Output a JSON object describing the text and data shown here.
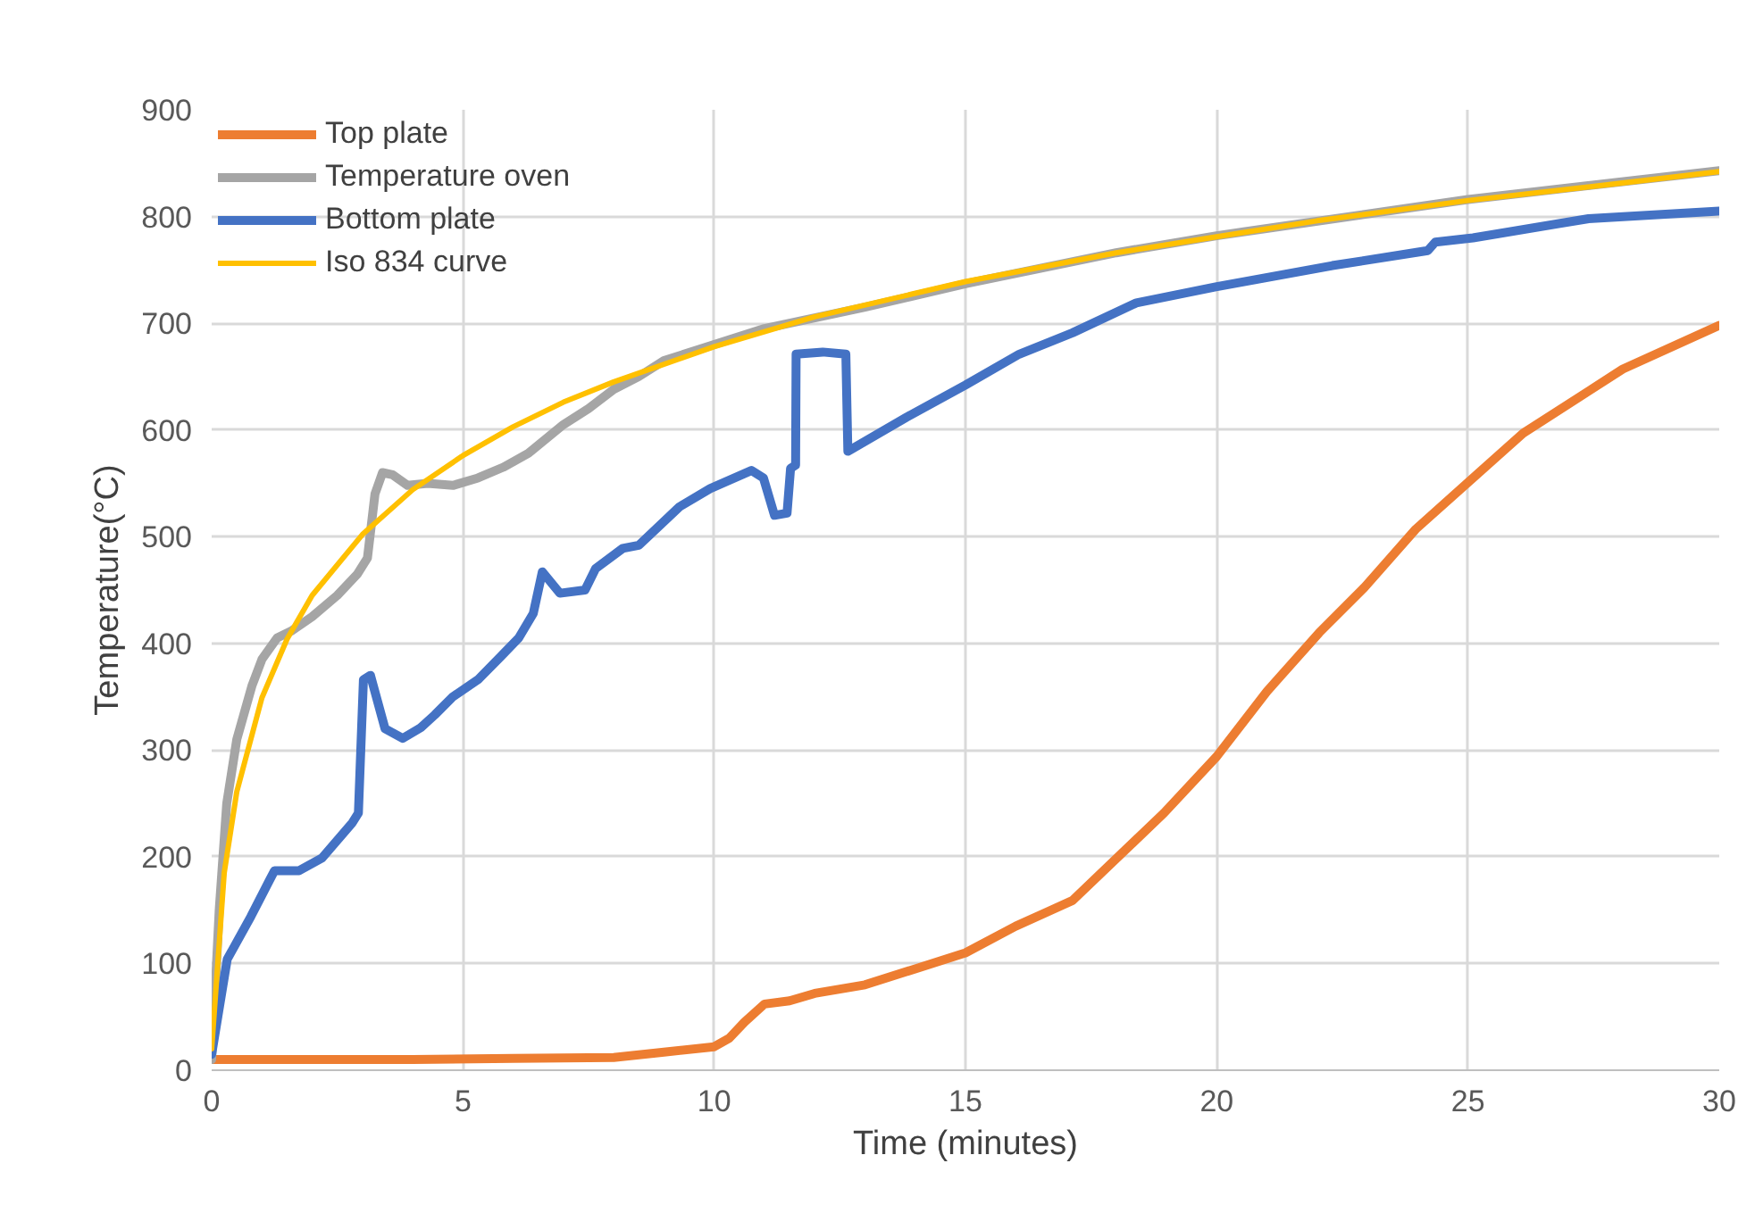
{
  "chart_data": {
    "type": "line",
    "xlabel": "Time (minutes)",
    "ylabel": "Temperature(°C)",
    "xlim": [
      0,
      30
    ],
    "xticks": [
      0,
      5,
      10,
      15,
      20,
      25,
      30
    ],
    "ylim": [
      0,
      900
    ],
    "yticks": [
      0,
      100,
      200,
      300,
      400,
      500,
      600,
      700,
      800,
      900
    ],
    "grid": true,
    "legend": "top left",
    "marker": "none",
    "line_style": "solid",
    "series": [
      {
        "name": "Top plate",
        "color": "#ed7d31",
        "x": [
          0,
          2,
          4,
          6,
          8,
          9,
          10,
          10.3,
          10.6,
          11,
          11.5,
          12,
          13,
          14,
          15,
          16,
          17.13,
          18.95,
          20.0,
          21.0,
          22.04,
          22.93,
          23.96,
          25.1,
          26.1,
          28.08,
          30
        ],
        "values": [
          10,
          10,
          10,
          11,
          12,
          17,
          22,
          30,
          45,
          62,
          65,
          72,
          80,
          95,
          110,
          135,
          159,
          241,
          294,
          355,
          410,
          452,
          507,
          555,
          597,
          657,
          698
        ]
      },
      {
        "name": "Temperature oven",
        "color": "#a5a5a5",
        "x": [
          0,
          0.15,
          0.3,
          0.5,
          0.8,
          1.0,
          1.3,
          1.6,
          2,
          2.5,
          2.9,
          3.1,
          3.25,
          3.4,
          3.6,
          3.9,
          4.3,
          4.8,
          5.3,
          5.8,
          6.3,
          7,
          7.5,
          8,
          8.5,
          9,
          10,
          11,
          12,
          13,
          15,
          18,
          20,
          25,
          30
        ],
        "values": [
          10,
          150,
          250,
          310,
          360,
          385,
          405,
          412,
          425,
          445,
          465,
          480,
          540,
          560,
          558,
          548,
          550,
          548,
          555,
          565,
          578,
          605,
          620,
          638,
          650,
          665,
          680,
          695,
          705,
          715,
          737,
          766,
          782,
          816,
          843
        ]
      },
      {
        "name": "Bottom plate",
        "color": "#4472c4",
        "x": [
          0,
          0.31,
          0.78,
          1.14,
          1.25,
          1.74,
          2.2,
          2.8,
          2.92,
          3.02,
          3.16,
          3.45,
          3.8,
          4.16,
          4.44,
          4.8,
          5.3,
          5.76,
          6.11,
          6.4,
          6.58,
          6.93,
          7.43,
          7.64,
          8.18,
          8.5,
          9.31,
          9.92,
          10.74,
          10.98,
          11.2,
          11.45,
          11.52,
          11.62,
          11.63,
          12.16,
          12.62,
          12.66,
          13.83,
          15.0,
          16.07,
          17.13,
          18.4,
          19.98,
          22.3,
          24.2,
          24.35,
          25.1,
          27.4,
          30
        ],
        "values": [
          15,
          104,
          144,
          177,
          187,
          187,
          199,
          232,
          241,
          366,
          370,
          320,
          311,
          321,
          333,
          350,
          366,
          388,
          405,
          428,
          467,
          447,
          450,
          470,
          489,
          492,
          528,
          545,
          562,
          555,
          520,
          522,
          564,
          567,
          671,
          673,
          671,
          580,
          612,
          642,
          671,
          691,
          719,
          734,
          754,
          768,
          776,
          780,
          798,
          805
        ]
      },
      {
        "name": "Iso 834 curve",
        "color": "#ffc000",
        "x": [
          0,
          0.25,
          0.5,
          1,
          1.5,
          2,
          3,
          4,
          5,
          6,
          7,
          8,
          10,
          12,
          15,
          18,
          20,
          22,
          25,
          28,
          30
        ],
        "values": [
          20,
          185,
          261,
          349,
          404,
          445,
          502,
          544,
          576,
          603,
          626,
          645,
          678,
          706,
          739,
          766,
          781,
          796,
          815,
          831,
          842
        ]
      }
    ]
  }
}
